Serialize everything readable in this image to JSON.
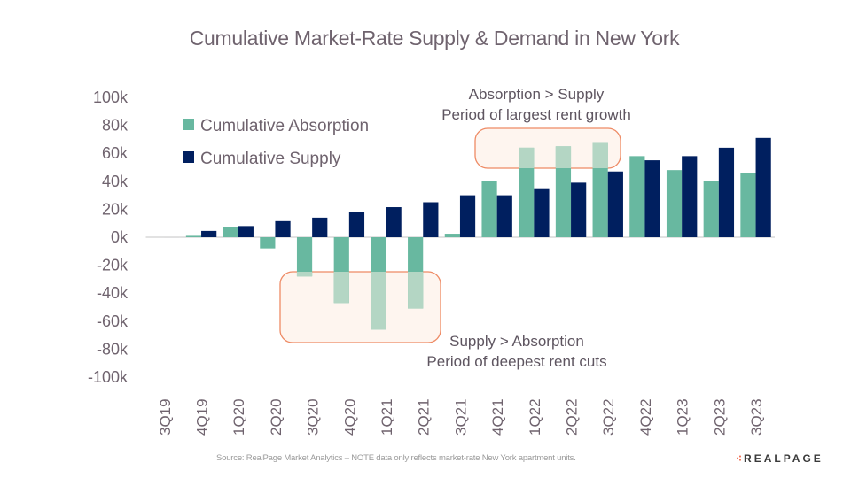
{
  "chart_data": {
    "type": "bar",
    "title": "Cumulative Market-Rate Supply & Demand in New York",
    "xlabel": "",
    "ylabel": "",
    "ylim": [
      -100000,
      100000
    ],
    "yticks": [
      100000,
      80000,
      60000,
      40000,
      20000,
      0,
      -20000,
      -40000,
      -60000,
      -80000,
      -100000
    ],
    "ytick_labels": [
      "100k",
      "80k",
      "60k",
      "40k",
      "20k",
      "0k",
      "-20k",
      "-40k",
      "-60k",
      "-80k",
      "-100k"
    ],
    "grid": false,
    "legend_position": "top-left",
    "categories": [
      "3Q19",
      "4Q19",
      "1Q20",
      "2Q20",
      "3Q20",
      "4Q20",
      "1Q21",
      "2Q21",
      "3Q21",
      "4Q21",
      "1Q22",
      "2Q22",
      "3Q22",
      "4Q22",
      "1Q23",
      "2Q23",
      "3Q23"
    ],
    "series": [
      {
        "name": "Cumulative Absorption",
        "color": "#68b8a0",
        "values": [
          0,
          1000,
          7500,
          -8000,
          -28000,
          -47000,
          -66000,
          -51000,
          2500,
          40000,
          64000,
          65000,
          68000,
          58000,
          48000,
          40000,
          46000
        ]
      },
      {
        "name": "Cumulative Supply",
        "color": "#001f5f",
        "values": [
          0,
          4500,
          8000,
          11500,
          14000,
          18000,
          21500,
          25000,
          30000,
          30000,
          35000,
          39000,
          47000,
          55000,
          58000,
          64000,
          71000
        ]
      }
    ],
    "annotations": [
      {
        "id": "growth",
        "line1": "Absorption > Supply",
        "line2": "Period of largest rent growth",
        "categories": [
          "1Q22",
          "2Q22",
          "3Q22"
        ],
        "yrange": [
          46000,
          78000
        ]
      },
      {
        "id": "cuts",
        "line1": "Supply > Absorption",
        "line2": "Period of deepest rent cuts",
        "categories": [
          "3Q20",
          "4Q20",
          "1Q21",
          "2Q21"
        ],
        "yrange": [
          -75000,
          -25000
        ]
      }
    ]
  },
  "footer": {
    "source": "Source: RealPage Market Analytics – NOTE data only reflects market-rate New York apartment units.",
    "logo_text": "REALPAGE",
    "logo_dots": "⁖"
  },
  "colors": {
    "annotation_border": "#ee8a64",
    "annotation_fill": "#fef5ef",
    "faded_absorption": "#b4d6c4",
    "axis_text": "#6f636e",
    "zero_line": "#d9d9d9"
  }
}
